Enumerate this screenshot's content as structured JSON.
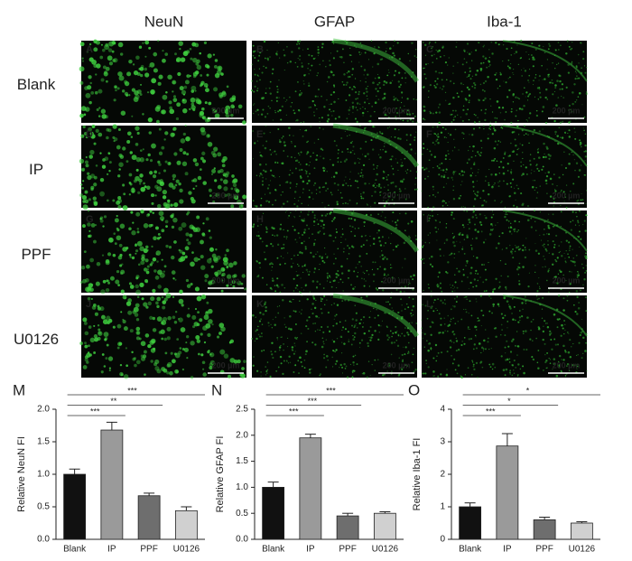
{
  "figure": {
    "columns": [
      "NeuN",
      "GFAP",
      "Iba-1"
    ],
    "rows": [
      "Blank",
      "IP",
      "PPF",
      "U0126"
    ],
    "panels": [
      "A",
      "B",
      "C",
      "D",
      "E",
      "F",
      "G",
      "H",
      "I",
      "J",
      "K",
      "L"
    ],
    "scale_bar": "200 µm"
  },
  "chart_data": [
    {
      "type": "bar",
      "label": "M",
      "ylabel": "Relative NeuN FI",
      "categories": [
        "Blank",
        "IP",
        "PPF",
        "U0126"
      ],
      "values": [
        1.0,
        1.68,
        0.67,
        0.44
      ],
      "errors": [
        0.08,
        0.12,
        0.04,
        0.06
      ],
      "colors": [
        "#111111",
        "#9a9a9a",
        "#6e6e6e",
        "#d0d0d0"
      ],
      "significance": [
        null,
        "***",
        "**",
        "***"
      ],
      "ylim": [
        0,
        2.0
      ],
      "yticks": [
        {
          "value": 0,
          "label": "0.0"
        },
        0.5,
        {
          "value": 1,
          "label": "1.0"
        },
        1.5,
        {
          "value": 2,
          "label": "2.0"
        }
      ]
    },
    {
      "type": "bar",
      "label": "N",
      "ylabel": "Relative GFAP FI",
      "categories": [
        "Blank",
        "IP",
        "PPF",
        "U0126"
      ],
      "values": [
        1.0,
        1.95,
        0.45,
        0.5
      ],
      "errors": [
        0.1,
        0.07,
        0.05,
        0.03
      ],
      "colors": [
        "#111111",
        "#9a9a9a",
        "#6e6e6e",
        "#d0d0d0"
      ],
      "significance": [
        null,
        "***",
        "***",
        "***"
      ],
      "ylim": [
        0,
        2.5
      ],
      "yticks": [
        {
          "value": 0,
          "label": "0.0"
        },
        0.5,
        {
          "value": 1,
          "label": "1.0"
        },
        1.5,
        {
          "value": 2,
          "label": "2.0"
        },
        2.5
      ]
    },
    {
      "type": "bar",
      "label": "O",
      "ylabel": "Relative Iba-1 FI",
      "categories": [
        "Blank",
        "IP",
        "PPF",
        "U0126"
      ],
      "values": [
        1.0,
        2.87,
        0.6,
        0.5
      ],
      "errors": [
        0.12,
        0.38,
        0.08,
        0.04
      ],
      "colors": [
        "#111111",
        "#9a9a9a",
        "#6e6e6e",
        "#d0d0d0"
      ],
      "significance": [
        null,
        "***",
        "*",
        "*"
      ],
      "ylim": [
        0,
        4
      ],
      "yticks": [
        0,
        1,
        2,
        3,
        4
      ]
    }
  ]
}
